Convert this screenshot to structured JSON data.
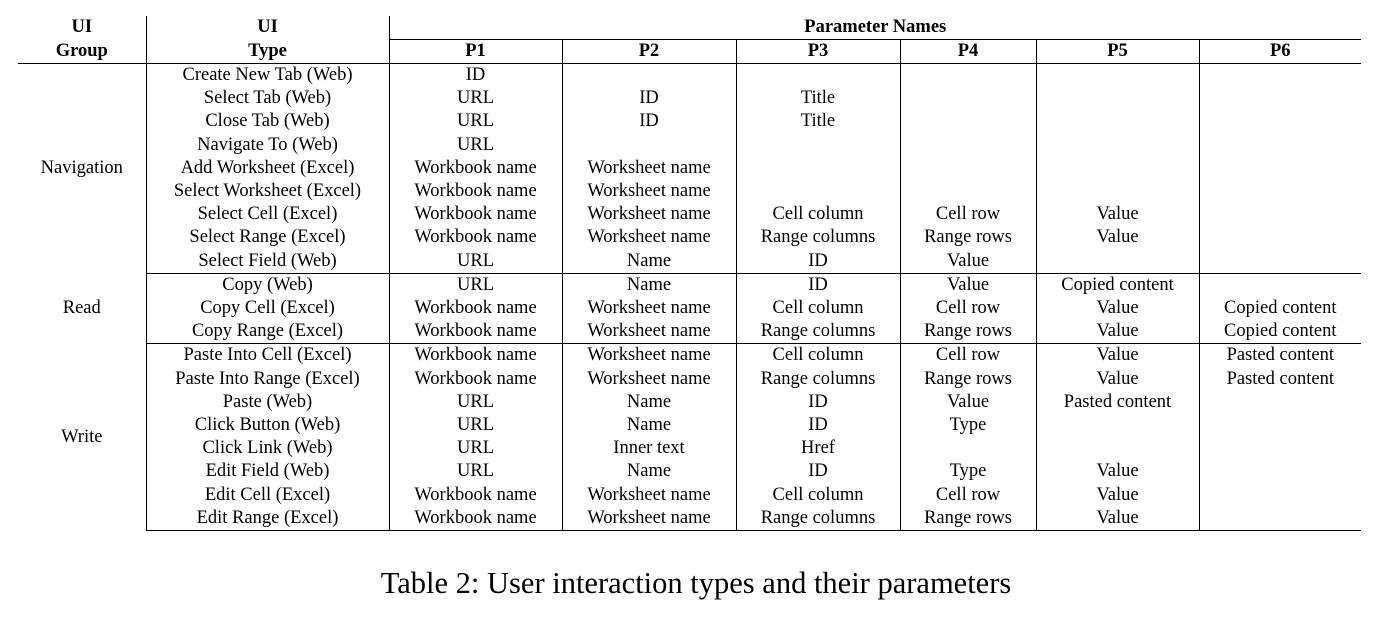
{
  "table": {
    "header": {
      "ui_group_line1": "UI",
      "ui_group_line2": "Group",
      "ui_type_line1": "UI",
      "ui_type_line2": "Type",
      "parameter_names": "Parameter Names",
      "params": [
        "P1",
        "P2",
        "P3",
        "P4",
        "P5",
        "P6"
      ]
    },
    "groups": [
      {
        "name": "Navigation",
        "rows": [
          {
            "type": "Create New Tab (Web)",
            "p": [
              "ID",
              "",
              "",
              "",
              "",
              ""
            ]
          },
          {
            "type": "Select Tab (Web)",
            "p": [
              "URL",
              "ID",
              "Title",
              "",
              "",
              ""
            ]
          },
          {
            "type": "Close Tab (Web)",
            "p": [
              "URL",
              "ID",
              "Title",
              "",
              "",
              ""
            ]
          },
          {
            "type": "Navigate To (Web)",
            "p": [
              "URL",
              "",
              "",
              "",
              "",
              ""
            ]
          },
          {
            "type": "Add Worksheet (Excel)",
            "p": [
              "Workbook name",
              "Worksheet name",
              "",
              "",
              "",
              ""
            ]
          },
          {
            "type": "Select Worksheet (Excel)",
            "p": [
              "Workbook name",
              "Worksheet name",
              "",
              "",
              "",
              ""
            ]
          },
          {
            "type": "Select Cell (Excel)",
            "p": [
              "Workbook name",
              "Worksheet name",
              "Cell column",
              "Cell row",
              "Value",
              ""
            ]
          },
          {
            "type": "Select Range (Excel)",
            "p": [
              "Workbook name",
              "Worksheet name",
              "Range columns",
              "Range rows",
              "Value",
              ""
            ]
          },
          {
            "type": "Select Field (Web)",
            "p": [
              "URL",
              "Name",
              "ID",
              "Value",
              "",
              ""
            ]
          }
        ]
      },
      {
        "name": "Read",
        "rows": [
          {
            "type": "Copy (Web)",
            "p": [
              "URL",
              "Name",
              "ID",
              "Value",
              "Copied content",
              ""
            ]
          },
          {
            "type": "Copy Cell (Excel)",
            "p": [
              "Workbook name",
              "Worksheet name",
              "Cell column",
              "Cell row",
              "Value",
              "Copied content"
            ]
          },
          {
            "type": "Copy Range (Excel)",
            "p": [
              "Workbook name",
              "Worksheet name",
              "Range columns",
              "Range rows",
              "Value",
              "Copied content"
            ]
          }
        ]
      },
      {
        "name": "Write",
        "rows": [
          {
            "type": "Paste Into Cell (Excel)",
            "p": [
              "Workbook name",
              "Worksheet name",
              "Cell column",
              "Cell row",
              "Value",
              "Pasted content"
            ]
          },
          {
            "type": "Paste Into Range (Excel)",
            "p": [
              "Workbook name",
              "Worksheet name",
              "Range columns",
              "Range rows",
              "Value",
              "Pasted content"
            ]
          },
          {
            "type": "Paste (Web)",
            "p": [
              "URL",
              "Name",
              "ID",
              "Value",
              "Pasted content",
              ""
            ]
          },
          {
            "type": "Click Button (Web)",
            "p": [
              "URL",
              "Name",
              "ID",
              "Type",
              "",
              ""
            ]
          },
          {
            "type": "Click Link (Web)",
            "p": [
              "URL",
              "Inner text",
              "Href",
              "",
              "",
              ""
            ]
          },
          {
            "type": "Edit Field (Web)",
            "p": [
              "URL",
              "Name",
              "ID",
              "Type",
              "Value",
              ""
            ]
          },
          {
            "type": "Edit Cell (Excel)",
            "p": [
              "Workbook name",
              "Worksheet name",
              "Cell column",
              "Cell row",
              "Value",
              ""
            ]
          },
          {
            "type": "Edit Range (Excel)",
            "p": [
              "Workbook name",
              "Worksheet name",
              "Range columns",
              "Range rows",
              "Value",
              ""
            ]
          }
        ]
      }
    ]
  },
  "caption": "Table 2: User interaction types and their parameters"
}
